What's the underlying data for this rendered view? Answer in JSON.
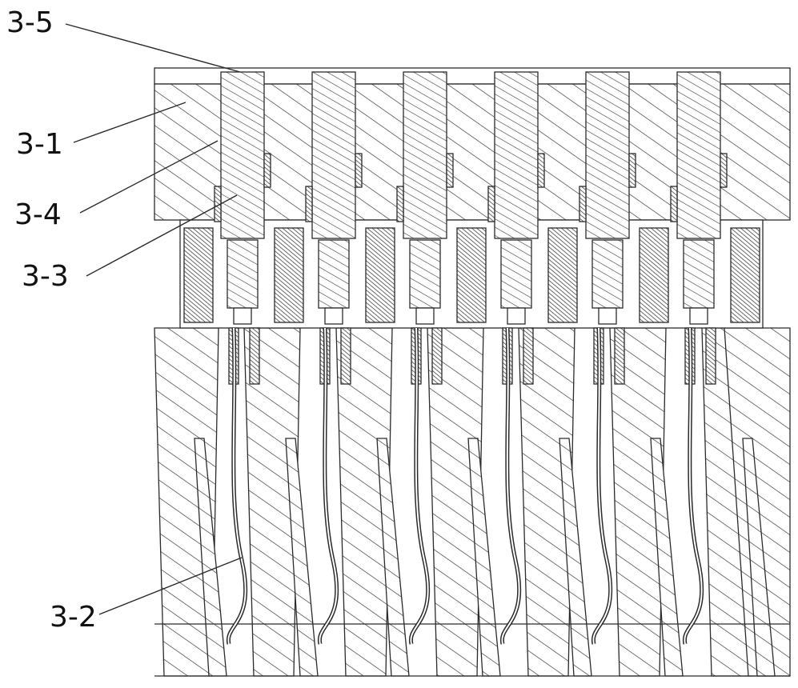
{
  "figure": {
    "colors": {
      "line": "#2b2b2b",
      "hatch": "#3a3a3a",
      "background": "#ffffff",
      "dense_hatch": "#444444"
    },
    "labels": [
      {
        "id": "3-5",
        "text": "3-5"
      },
      {
        "id": "3-1",
        "text": "3-1"
      },
      {
        "id": "3-4",
        "text": "3-4"
      },
      {
        "id": "3-3",
        "text": "3-3"
      },
      {
        "id": "3-2",
        "text": "3-2"
      }
    ]
  }
}
